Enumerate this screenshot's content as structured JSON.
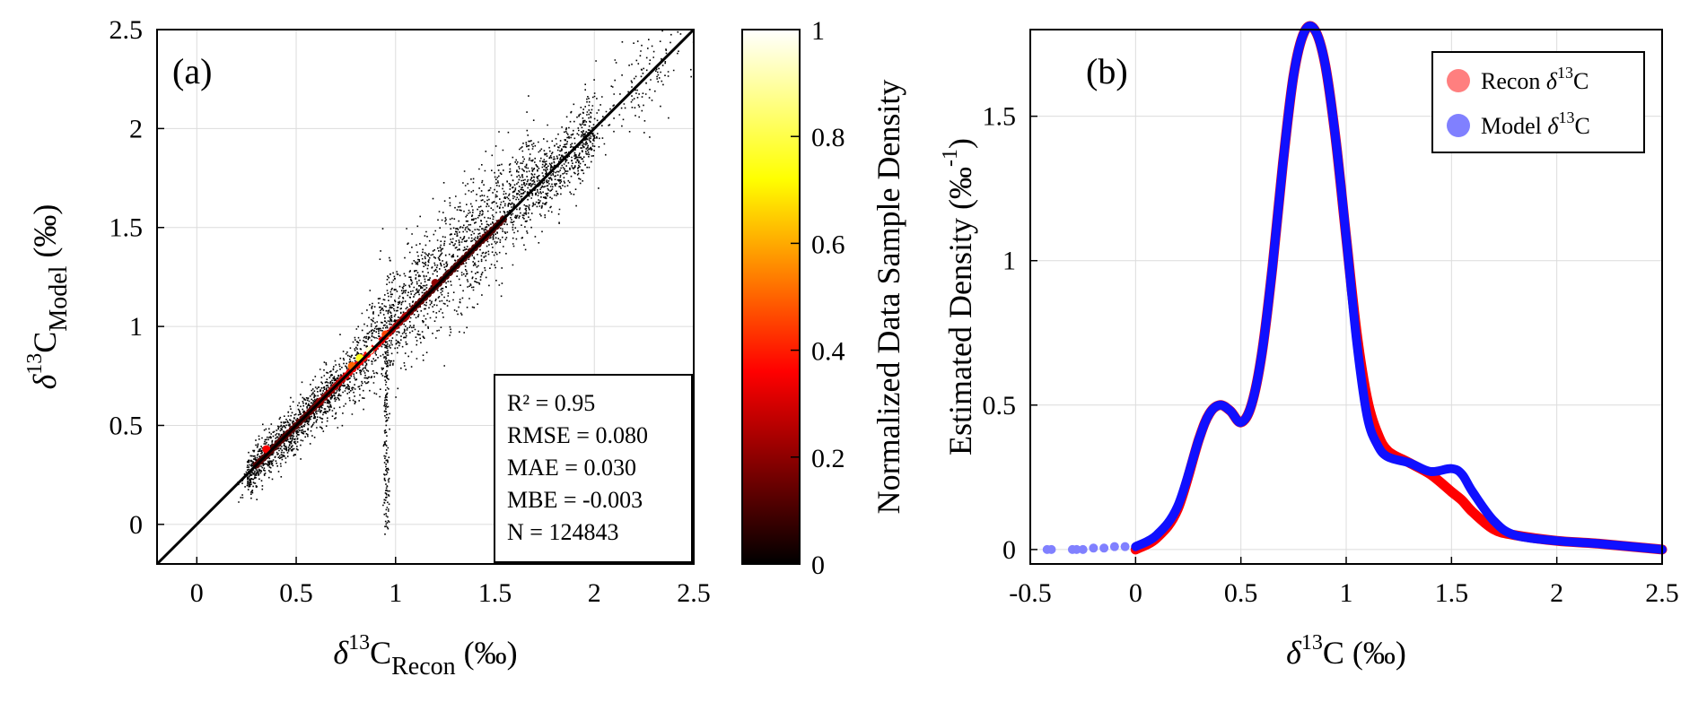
{
  "chart_data": [
    {
      "type": "scatter",
      "panel_label": "(a)",
      "xlabel": {
        "prefix": "δ",
        "sup": "13",
        "main": "C",
        "sub": "Recon",
        "suffix": " (‰)"
      },
      "ylabel": {
        "prefix": "δ",
        "sup": "13",
        "main": "C",
        "sub": "Model",
        "suffix": " (‰)"
      },
      "xlim": [
        -0.2,
        2.5
      ],
      "ylim": [
        -0.2,
        2.5
      ],
      "xticks": [
        "0",
        "0.5",
        "1",
        "1.5",
        "2",
        "2.5"
      ],
      "yticks": [
        "0",
        "0.5",
        "1",
        "1.5",
        "2",
        "2.5"
      ],
      "grid": true,
      "reference_line": "1:1",
      "stats": [
        "R² = 0.95",
        "RMSE = 0.080",
        "MAE = 0.030",
        "MBE = -0.003",
        "N = 124843"
      ],
      "colorbar": {
        "label": "Normalized Data Sample Density",
        "ticks": [
          "0",
          "0.2",
          "0.4",
          "0.6",
          "0.8",
          "1"
        ],
        "range": [
          0,
          1
        ],
        "colormap": "hot"
      },
      "hotspots": [
        {
          "x": 0.35,
          "y": 0.38,
          "density": 0.35
        },
        {
          "x": 0.62,
          "y": 0.62,
          "density": 0.2
        },
        {
          "x": 0.78,
          "y": 0.8,
          "density": 0.5
        },
        {
          "x": 0.82,
          "y": 0.84,
          "density": 0.75
        },
        {
          "x": 0.87,
          "y": 0.88,
          "density": 0.95
        },
        {
          "x": 0.9,
          "y": 0.92,
          "density": 1.0
        },
        {
          "x": 0.95,
          "y": 0.96,
          "density": 0.45
        },
        {
          "x": 1.05,
          "y": 1.05,
          "density": 0.25
        },
        {
          "x": 1.2,
          "y": 1.22,
          "density": 0.2
        },
        {
          "x": 1.45,
          "y": 1.45,
          "density": 0.15
        }
      ]
    },
    {
      "type": "line",
      "panel_label": "(b)",
      "xlabel": {
        "prefix": "δ",
        "sup": "13",
        "main": "C",
        "suffix": " (‰)"
      },
      "ylabel": {
        "main": "Estimated Density (‰",
        "sup": "-1",
        "suffix": ")"
      },
      "xlim": [
        -0.5,
        2.5
      ],
      "ylim": [
        -0.05,
        1.8
      ],
      "xticks": [
        "-0.5",
        "0",
        "0.5",
        "1",
        "1.5",
        "2",
        "2.5"
      ],
      "yticks": [
        "0",
        "0.5",
        "1",
        "1.5"
      ],
      "grid": true,
      "legend_position": "top-right",
      "x": [
        0,
        0.1,
        0.2,
        0.3,
        0.35,
        0.4,
        0.45,
        0.5,
        0.55,
        0.6,
        0.65,
        0.7,
        0.75,
        0.8,
        0.85,
        0.9,
        0.95,
        1.0,
        1.05,
        1.1,
        1.15,
        1.2,
        1.3,
        1.4,
        1.5,
        1.55,
        1.6,
        1.7,
        1.8,
        2.0,
        2.2,
        2.5
      ],
      "series": [
        {
          "name": "Recon",
          "legend": {
            "prefix": "Recon ",
            "italic": "δ",
            "sup": "13",
            "main": "C"
          },
          "color": "#ff0000",
          "values": [
            0.0,
            0.04,
            0.14,
            0.38,
            0.47,
            0.5,
            0.48,
            0.44,
            0.5,
            0.68,
            0.98,
            1.34,
            1.64,
            1.79,
            1.8,
            1.68,
            1.42,
            1.08,
            0.75,
            0.52,
            0.4,
            0.34,
            0.3,
            0.26,
            0.2,
            0.17,
            0.13,
            0.07,
            0.05,
            0.03,
            0.02,
            0.0
          ]
        },
        {
          "name": "Model",
          "legend": {
            "prefix": "Model ",
            "italic": "δ",
            "sup": "13",
            "main": "C"
          },
          "color": "#1010ff",
          "values": [
            0.01,
            0.05,
            0.15,
            0.38,
            0.47,
            0.5,
            0.48,
            0.44,
            0.5,
            0.68,
            0.98,
            1.34,
            1.64,
            1.79,
            1.8,
            1.68,
            1.42,
            1.08,
            0.72,
            0.46,
            0.36,
            0.32,
            0.3,
            0.27,
            0.28,
            0.26,
            0.2,
            0.1,
            0.05,
            0.03,
            0.02,
            0.0
          ],
          "tail_x": [
            -0.42,
            -0.4,
            -0.3,
            -0.28,
            -0.25,
            -0.2,
            -0.15,
            -0.1,
            -0.05
          ],
          "tail_y": [
            0.0,
            0.0,
            0.0,
            0.0,
            0.0,
            0.005,
            0.005,
            0.01,
            0.01
          ]
        }
      ]
    }
  ]
}
